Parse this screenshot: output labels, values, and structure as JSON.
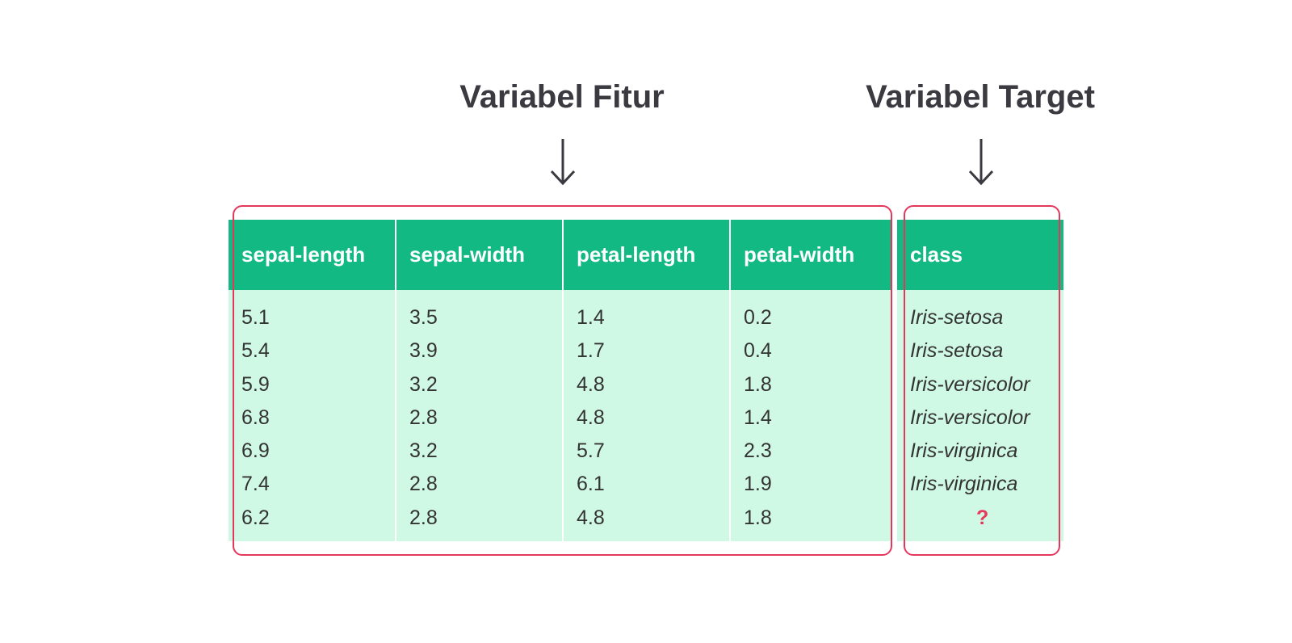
{
  "titles": {
    "fitur": "Variabel Fitur",
    "target": "Variabel Target"
  },
  "table": {
    "headers": [
      "sepal-length",
      "sepal-width",
      "petal-length",
      "petal-width",
      "class"
    ],
    "columns": {
      "sepal_length": [
        "5.1",
        "5.4",
        "5.9",
        "6.8",
        "6.9",
        "7.4",
        "6.2"
      ],
      "sepal_width": [
        "3.5",
        "3.9",
        "3.2",
        "2.8",
        "3.2",
        "2.8",
        "2.8"
      ],
      "petal_length": [
        "1.4",
        "1.7",
        "4.8",
        "4.8",
        "5.7",
        "6.1",
        "4.8"
      ],
      "petal_width": [
        "0.2",
        "0.4",
        "1.8",
        "1.4",
        "2.3",
        "1.9",
        "1.8"
      ],
      "class": [
        "Iris-setosa",
        "Iris-setosa",
        "Iris-versicolor",
        "Iris-versicolor",
        "Iris-virginica",
        "Iris-virginica",
        "?"
      ]
    }
  },
  "colors": {
    "header_bg": "#13b982",
    "body_bg": "#d0f9e5",
    "frame": "#e3385c",
    "unknown_mark": "#e8385a",
    "title_text": "#3a3a40"
  },
  "icons": {
    "fitur_arrow": "arrow-down-icon",
    "target_arrow": "arrow-down-icon"
  }
}
